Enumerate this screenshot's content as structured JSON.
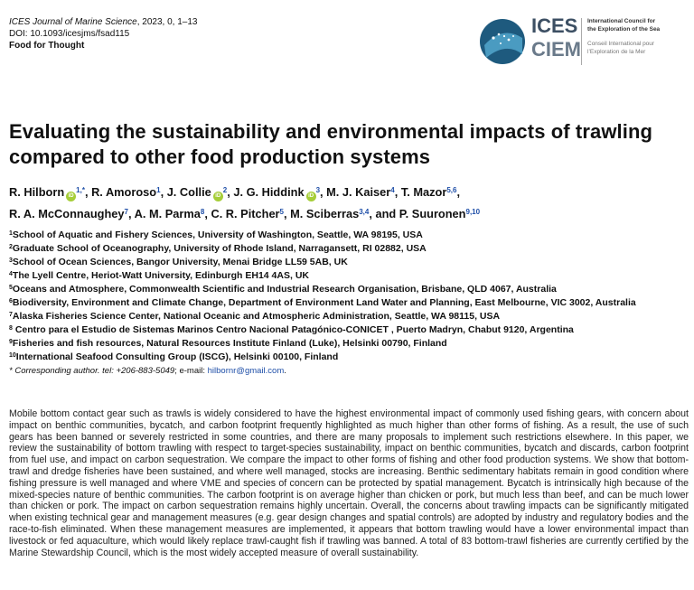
{
  "journal": {
    "citation_title": "ICES Journal of Marine Science",
    "citation_rest": ", 2023, 0, 1–13",
    "doi": "DOI: 10.1093/icesjms/fsad115",
    "section": "Food for Thought"
  },
  "logo": {
    "top": "ICES",
    "bottom": "CIEM",
    "en_line1": "International Council for",
    "en_line2": "the Exploration of the Sea",
    "fr_line1": "Conseil International pour",
    "fr_line2": "l’Exploration de la Mer"
  },
  "title": "Evaluating the sustainability and environmental impacts of trawling compared to other food production systems",
  "authors": [
    {
      "name": "R. Hilborn",
      "orcid": true,
      "sup": "1,*"
    },
    {
      "name": "R. Amoroso",
      "orcid": false,
      "sup": "1"
    },
    {
      "name": "J. Collie",
      "orcid": true,
      "sup": "2"
    },
    {
      "name": "J. G. Hiddink",
      "orcid": true,
      "sup": "3"
    },
    {
      "name": "M. J. Kaiser",
      "orcid": false,
      "sup": "4"
    },
    {
      "name": "T. Mazor",
      "orcid": false,
      "sup": "5,6"
    },
    {
      "name": "R. A. McConnaughey",
      "orcid": false,
      "sup": "7"
    },
    {
      "name": "A. M. Parma",
      "orcid": false,
      "sup": "8"
    },
    {
      "name": "C. R. Pitcher",
      "orcid": false,
      "sup": "5"
    },
    {
      "name": "M. Sciberras",
      "orcid": false,
      "sup": "3,4"
    },
    {
      "name": "P. Suuronen",
      "orcid": false,
      "sup": "9,10"
    }
  ],
  "affiliations": [
    {
      "n": "1",
      "text": "School of Aquatic and Fishery Sciences, University of Washington, Seattle, WA 98195, USA"
    },
    {
      "n": "2",
      "text": "Graduate School of Oceanography, University of Rhode Island, Narragansett, RI 02882, USA"
    },
    {
      "n": "3",
      "text": "School of Ocean Sciences, Bangor University, Menai Bridge LL59 5AB, UK"
    },
    {
      "n": "4",
      "text": "The Lyell Centre, Heriot-Watt University, Edinburgh EH14 4AS, UK"
    },
    {
      "n": "5",
      "text": "Oceans and Atmosphere, Commonwealth Scientific and Industrial Research Organisation, Brisbane, QLD 4067, Australia"
    },
    {
      "n": "6",
      "text": "Biodiversity, Environment and Climate Change, Department of Environment Land Water and Planning, East Melbourne, VIC 3002, Australia"
    },
    {
      "n": "7",
      "text": "Alaska Fisheries Science Center, National Oceanic and Atmospheric Administration, Seattle, WA 98115, USA"
    },
    {
      "n": "8",
      "text": " Centro para el Estudio de Sistemas Marinos Centro Nacional Patagónico-CONICET ,  Puerto Madryn, Chabut 9120, Argentina"
    },
    {
      "n": "9",
      "text": "Fisheries and fish resources, Natural Resources Institute Finland (Luke), Helsinki 00790, Finland"
    },
    {
      "n": "10",
      "text": "International Seafood Consulting Group (ISCG), Helsinki 00100, Finland"
    }
  ],
  "corresponding": {
    "label": "* Corresponding author. tel: +206-883-5049",
    "email_label": "; e-mail: ",
    "email": "hilbornr@gmail.com",
    "end": "."
  },
  "abstract": "Mobile bottom contact gear such as trawls is widely considered to have the highest environmental impact of commonly used fishing gears, with concern about impact on benthic communities, bycatch, and carbon footprint frequently highlighted as much higher than other forms of fishing. As a result, the use of such gears has been banned or severely restricted in some countries, and there are many proposals to implement such restrictions elsewhere. In this paper, we review the sustainability of bottom trawling with respect to target-species sustainability, impact on benthic communities, bycatch and discards, carbon footprint from fuel use, and impact on carbon sequestration. We compare the impact to other forms of fishing and other food production systems. We show that bottom-trawl and dredge fisheries have been sustained, and where well managed, stocks are increasing. Benthic sedimentary habitats remain in good condition where fishing pressure is well managed and where VME and species of concern can be protected by spatial management. Bycatch is intrinsically high because of the mixed-species nature of benthic communities. The carbon footprint is on average higher than chicken or pork, but much less than beef, and can be much lower than chicken or pork. The impact on carbon sequestration remains highly uncertain. Overall, the concerns about trawling impacts can be significantly mitigated when existing technical gear and management measures (e.g. gear design changes and spatial controls) are adopted by industry and regulatory bodies and the race-to-fish eliminated. When these management measures are implemented, it appears that bottom trawling would have a lower environmental impact than livestock or fed aquaculture, which would likely replace trawl-caught fish if trawling was banned. A total of 83 bottom-trawl fisheries are currently certified by the Marine Stewardship Council, which is the most widely accepted measure of overall sustainability.",
  "colors": {
    "link": "#1f4fa8",
    "orcid": "#a6ce39",
    "logo_dark": "#3c4f63"
  }
}
